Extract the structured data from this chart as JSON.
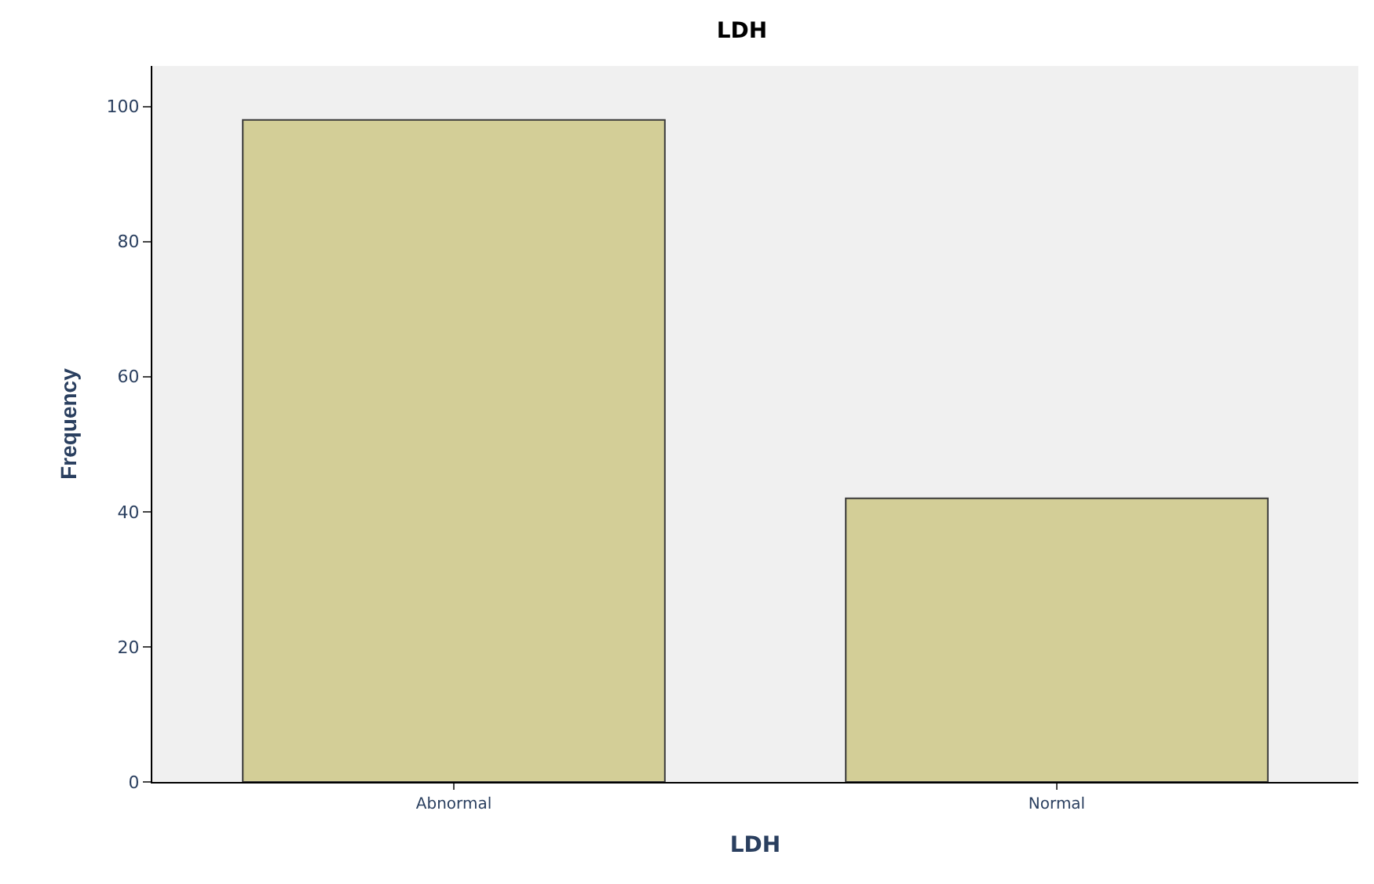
{
  "chart_data": {
    "type": "bar",
    "title": "LDH",
    "xlabel": "LDH",
    "ylabel": "Frequency",
    "categories": [
      "Abnormal",
      "Normal"
    ],
    "values": [
      98,
      42
    ],
    "color": "#d3ce97",
    "ylim": [
      0,
      106
    ],
    "yticks": [
      0,
      20,
      40,
      60,
      80,
      100
    ],
    "grid": false
  }
}
